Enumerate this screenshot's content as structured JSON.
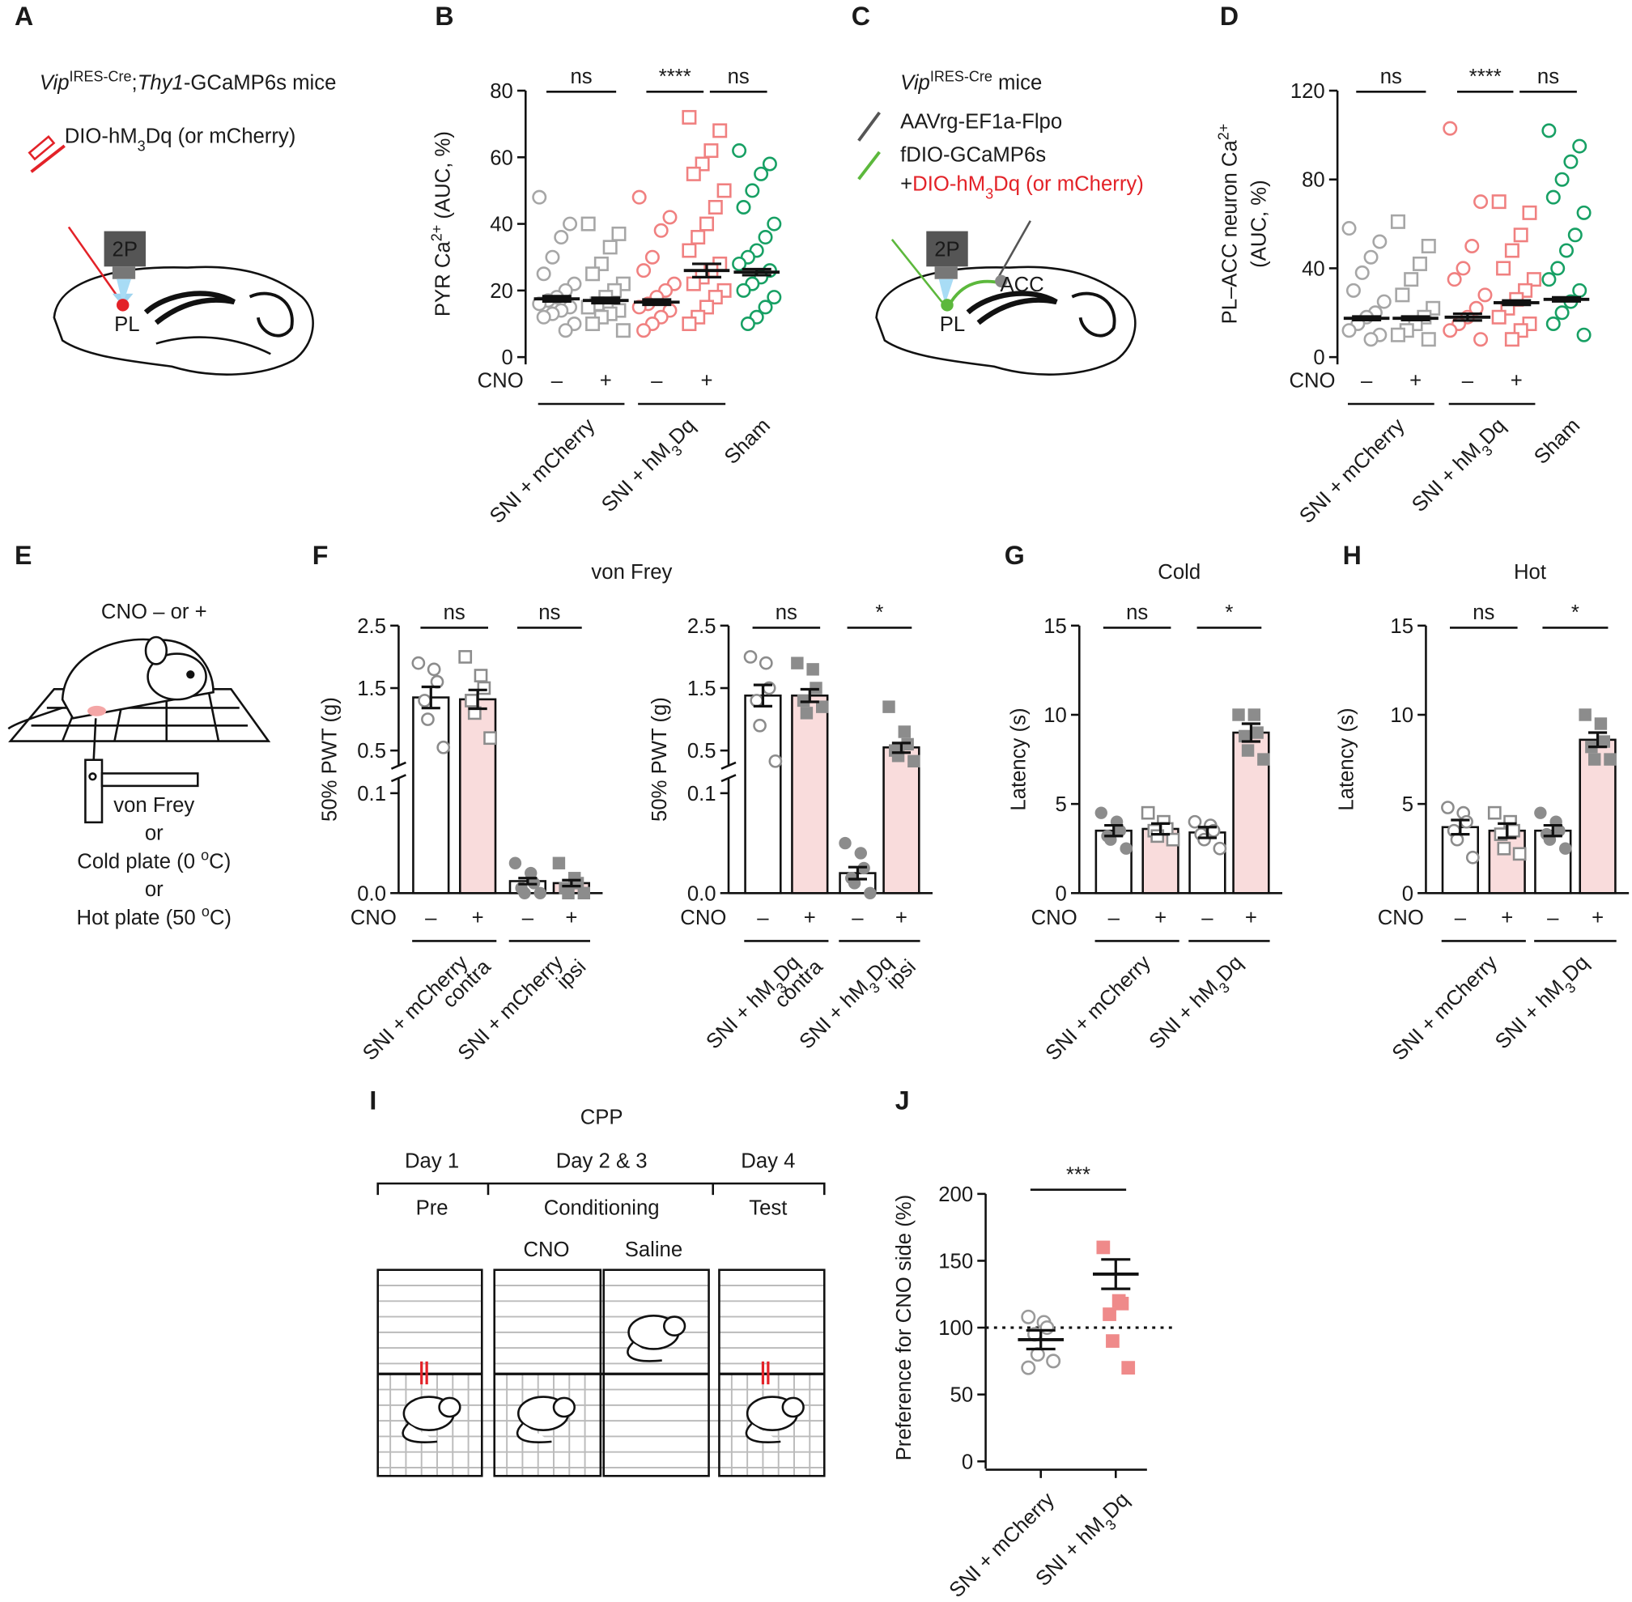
{
  "diagrams": {
    "A": {
      "letter": "A",
      "genotype": [
        {
          "text": "Vip",
          "italic": true
        },
        {
          "text": "IRES-Cre",
          "sup": true
        },
        {
          "text": ";"
        },
        {
          "text": "Thy1",
          "italic": true
        },
        {
          "text": "-GCaMP6s mice"
        }
      ],
      "virus": [
        {
          "text": "DIO-hM"
        },
        {
          "text": "3",
          "sub": true
        },
        {
          "text": "Dq (or mCherry)"
        }
      ],
      "objective": "2P",
      "region": "PL"
    },
    "B": {
      "letter": "B"
    },
    "C": {
      "letter": "C",
      "genotype": [
        {
          "text": "Vip",
          "italic": true
        },
        {
          "text": "IRES-Cre",
          "sup": true
        },
        {
          "text": " mice"
        }
      ],
      "virus1": "AAVrg-EF1a-Flpo",
      "virus2": "fDIO-GCaMP6s",
      "virus3": [
        {
          "text": "+"
        },
        {
          "text": "DIO-hM",
          "color": "#e32228"
        },
        {
          "text": "3",
          "sub": true,
          "color": "#e32228"
        },
        {
          "text": "Dq (or mCherry)",
          "color": "#e32228"
        }
      ],
      "objective": "2P",
      "target": "ACC",
      "region": "PL"
    },
    "D": {
      "letter": "D"
    },
    "E": {
      "letter": "E",
      "treatment": "CNO – or +",
      "tests": [
        [
          {
            "text": "von Frey"
          }
        ],
        [
          {
            "text": "or"
          }
        ],
        [
          {
            "text": "Cold plate (0 "
          },
          {
            "text": "o",
            "sup": true
          },
          {
            "text": "C)"
          }
        ],
        [
          {
            "text": "or"
          }
        ],
        [
          {
            "text": "Hot plate (50 "
          },
          {
            "text": "o",
            "sup": true
          },
          {
            "text": "C)"
          }
        ]
      ]
    },
    "F": {
      "letter": "F",
      "title": "von Frey"
    },
    "G": {
      "letter": "G",
      "title": "Cold"
    },
    "H": {
      "letter": "H",
      "title": "Hot"
    },
    "I": {
      "letter": "I",
      "title": "CPP",
      "days": [
        "Day 1",
        "Day 2 & 3",
        "Day 4"
      ],
      "phases": [
        "Pre",
        "Conditioning",
        "Test"
      ],
      "pairings": [
        "CNO",
        "Saline"
      ]
    },
    "J": {
      "letter": "J"
    }
  },
  "chart_data": [
    {
      "type": "strip",
      "y_label": [
        [
          {
            "text": "PYR Ca"
          },
          {
            "text": "2+",
            "sup": true
          },
          {
            "text": " (AUC, %)"
          }
        ]
      ],
      "ylim": [
        0,
        80
      ],
      "yticks": [
        0,
        20,
        40,
        60,
        80
      ],
      "values": [
        17.5,
        17,
        16.5,
        26,
        25.5
      ],
      "errors": [
        0.8,
        0.8,
        0.8,
        2,
        0.9
      ],
      "points": [
        [
          48,
          40,
          36,
          30,
          25,
          22,
          20,
          18,
          17,
          16,
          15,
          14,
          13,
          12,
          10,
          8
        ],
        [
          40,
          37,
          33,
          28,
          25,
          22,
          20,
          18,
          16,
          15,
          14,
          13,
          12,
          10,
          8
        ],
        [
          48,
          42,
          38,
          30,
          26,
          22,
          20,
          18,
          16,
          15,
          14,
          12,
          10,
          8
        ],
        [
          72,
          68,
          62,
          58,
          55,
          50,
          45,
          40,
          36,
          32,
          28,
          26,
          24,
          22,
          20,
          18,
          15,
          12,
          10
        ],
        [
          62,
          58,
          55,
          50,
          45,
          40,
          36,
          32,
          30,
          28,
          26,
          24,
          22,
          20,
          18,
          15,
          12,
          10
        ]
      ],
      "colors": [
        "#a6a6a6",
        "#a6a6a6",
        "#f08080",
        "#f08080",
        "#17a064"
      ],
      "markers": [
        "circle-open",
        "square-open",
        "circle-open",
        "square-open",
        "circle-open"
      ],
      "cno_label": "CNO",
      "cno_signs": [
        "–",
        "+",
        "–",
        "+",
        null
      ],
      "groups": [
        {
          "span": [
            0,
            1
          ],
          "lines": [
            [
              {
                "text": "SNI + mCherry"
              }
            ]
          ]
        },
        {
          "span": [
            2,
            3
          ],
          "lines": [
            [
              {
                "text": "SNI + hM"
              },
              {
                "text": "3",
                "sub": true
              },
              {
                "text": "Dq"
              }
            ]
          ]
        },
        {
          "span": [
            4,
            4
          ],
          "lines": [
            [
              {
                "text": "Sham"
              }
            ]
          ]
        }
      ],
      "significance": [
        {
          "label": "ns",
          "from": 0,
          "to": 1
        },
        {
          "label": "****",
          "from": 2,
          "to": 3
        },
        {
          "label": "ns",
          "from": 3,
          "to": 4
        }
      ]
    },
    {
      "type": "strip",
      "y_label": [
        [
          {
            "text": "PL–ACC neuron Ca"
          },
          {
            "text": "2+",
            "sup": true
          }
        ],
        [
          {
            "text": "(AUC, %)"
          }
        ]
      ],
      "ylim": [
        0,
        120
      ],
      "yticks": [
        0,
        40,
        80,
        120
      ],
      "values": [
        17.5,
        17.5,
        18,
        24.5,
        26
      ],
      "errors": [
        0.8,
        0.8,
        1.5,
        1,
        0.9
      ],
      "points": [
        [
          58,
          52,
          45,
          38,
          30,
          25,
          20,
          18,
          15,
          12,
          10,
          8
        ],
        [
          61,
          50,
          42,
          35,
          28,
          22,
          18,
          15,
          12,
          10,
          8
        ],
        [
          103,
          70,
          50,
          40,
          35,
          28,
          22,
          18,
          15,
          12,
          8
        ],
        [
          70,
          65,
          55,
          48,
          40,
          35,
          30,
          26,
          22,
          18,
          15,
          12,
          8
        ],
        [
          102,
          95,
          88,
          80,
          72,
          65,
          55,
          48,
          40,
          35,
          30,
          25,
          20,
          15,
          10
        ]
      ],
      "colors": [
        "#a6a6a6",
        "#a6a6a6",
        "#f08080",
        "#f08080",
        "#17a064"
      ],
      "markers": [
        "circle-open",
        "square-open",
        "circle-open",
        "square-open",
        "circle-open"
      ],
      "cno_label": "CNO",
      "cno_signs": [
        "–",
        "+",
        "–",
        "+",
        null
      ],
      "groups": [
        {
          "span": [
            0,
            1
          ],
          "lines": [
            [
              {
                "text": "SNI + mCherry"
              }
            ]
          ]
        },
        {
          "span": [
            2,
            3
          ],
          "lines": [
            [
              {
                "text": "SNI + hM"
              },
              {
                "text": "3",
                "sub": true
              },
              {
                "text": "Dq"
              }
            ]
          ]
        },
        {
          "span": [
            4,
            4
          ],
          "lines": [
            [
              {
                "text": "Sham"
              }
            ]
          ]
        }
      ],
      "significance": [
        {
          "label": "ns",
          "from": 0,
          "to": 1
        },
        {
          "label": "****",
          "from": 2,
          "to": 3
        },
        {
          "label": "ns",
          "from": 3,
          "to": 4
        }
      ]
    },
    {
      "type": "bar",
      "y_label": [
        [
          {
            "text": "50% PWT (g)"
          }
        ]
      ],
      "ylim": [
        0,
        2.5
      ],
      "axis_break": [
        0.1,
        0.5
      ],
      "yticks": [
        {
          "value": 0,
          "label": "0.0"
        },
        0.1,
        0.5,
        1.5,
        2.5
      ],
      "values": [
        1.35,
        1.32,
        0.012,
        0.01
      ],
      "errors": [
        0.17,
        0.15,
        0.003,
        0.003
      ],
      "points": [
        [
          1.9,
          1.8,
          1.6,
          1.3,
          1.0,
          0.55
        ],
        [
          2.0,
          1.7,
          1.5,
          1.3,
          1.1,
          0.7
        ],
        [
          0.03,
          0.02,
          0.01,
          0.005,
          0.0,
          0.0
        ],
        [
          0.03,
          0.015,
          0.01,
          0.005,
          0.0,
          0.0
        ]
      ],
      "bar_colors": [
        "#ffffff",
        "#f9dcdc",
        "#ffffff",
        "#f9dcdc"
      ],
      "colors": [
        "#8c8c8c",
        "#8c8c8c",
        "#8c8c8c",
        "#8c8c8c"
      ],
      "markers": [
        "circle-open",
        "square-open",
        "circle-filled",
        "square-filled"
      ],
      "cno_label": "CNO",
      "cno_signs": [
        "–",
        "+",
        "–",
        "+"
      ],
      "groups": [
        {
          "span": [
            0,
            1
          ],
          "lines": [
            [
              {
                "text": "SNI + mCherry"
              }
            ],
            [
              {
                "text": "contra"
              }
            ]
          ]
        },
        {
          "span": [
            2,
            3
          ],
          "lines": [
            [
              {
                "text": "SNI + mCherry"
              }
            ],
            [
              {
                "text": "ipsi"
              }
            ]
          ]
        }
      ],
      "significance": [
        {
          "label": "ns",
          "from": 0,
          "to": 1
        },
        {
          "label": "ns",
          "from": 2,
          "to": 3
        }
      ]
    },
    {
      "type": "bar",
      "y_label": [
        [
          {
            "text": "50% PWT (g)"
          }
        ]
      ],
      "ylim": [
        0,
        2.5
      ],
      "axis_break": [
        0.1,
        0.5
      ],
      "yticks": [
        {
          "value": 0,
          "label": "0.0"
        },
        0.1,
        0.5,
        1.5,
        2.5
      ],
      "values": [
        1.38,
        1.38,
        0.02,
        0.55
      ],
      "errors": [
        0.17,
        0.1,
        0.006,
        0.07
      ],
      "points": [
        [
          2.0,
          1.9,
          1.5,
          1.3,
          0.9,
          0.4
        ],
        [
          1.9,
          1.8,
          1.5,
          1.3,
          1.1,
          1.2
        ],
        [
          0.05,
          0.04,
          0.025,
          0.015,
          0.01,
          0.0
        ],
        [
          1.2,
          0.8,
          0.6,
          0.5,
          0.45,
          0.4
        ]
      ],
      "bar_colors": [
        "#ffffff",
        "#f9dcdc",
        "#ffffff",
        "#f9dcdc"
      ],
      "colors": [
        "#8c8c8c",
        "#8c8c8c",
        "#8c8c8c",
        "#8c8c8c"
      ],
      "markers": [
        "circle-open",
        "square-filled",
        "circle-filled",
        "square-filled"
      ],
      "cno_label": "CNO",
      "cno_signs": [
        "–",
        "+",
        "–",
        "+"
      ],
      "groups": [
        {
          "span": [
            0,
            1
          ],
          "lines": [
            [
              {
                "text": "SNI + hM"
              },
              {
                "text": "3",
                "sub": true
              },
              {
                "text": "Dq"
              }
            ],
            [
              {
                "text": "contra"
              }
            ]
          ]
        },
        {
          "span": [
            2,
            3
          ],
          "lines": [
            [
              {
                "text": "SNI + hM"
              },
              {
                "text": "3",
                "sub": true
              },
              {
                "text": "Dq"
              }
            ],
            [
              {
                "text": "ipsi"
              }
            ]
          ]
        }
      ],
      "significance": [
        {
          "label": "ns",
          "from": 0,
          "to": 1
        },
        {
          "label": "*",
          "from": 2,
          "to": 3
        }
      ]
    },
    {
      "type": "bar",
      "y_label": [
        [
          {
            "text": "Latency (s)"
          }
        ]
      ],
      "ylim": [
        0,
        15
      ],
      "yticks": [
        0,
        5,
        10,
        15
      ],
      "values": [
        3.5,
        3.6,
        3.4,
        9.0
      ],
      "errors": [
        0.3,
        0.3,
        0.3,
        0.5
      ],
      "points": [
        [
          4.5,
          4.0,
          3.5,
          3.2,
          3.0,
          2.5
        ],
        [
          4.5,
          4.0,
          3.6,
          3.5,
          3.2,
          3.0
        ],
        [
          4.0,
          3.8,
          3.5,
          3.3,
          3.0,
          2.5
        ],
        [
          10.0,
          10.0,
          9.0,
          8.8,
          8.0,
          7.5
        ]
      ],
      "bar_colors": [
        "#ffffff",
        "#f9dcdc",
        "#ffffff",
        "#f9dcdc"
      ],
      "colors": [
        "#8c8c8c",
        "#8c8c8c",
        "#8c8c8c",
        "#8c8c8c"
      ],
      "markers": [
        "circle-filled",
        "square-open",
        "circle-open",
        "square-filled"
      ],
      "cno_label": "CNO",
      "cno_signs": [
        "–",
        "+",
        "–",
        "+"
      ],
      "groups": [
        {
          "span": [
            0,
            1
          ],
          "lines": [
            [
              {
                "text": "SNI + mCherry"
              }
            ]
          ]
        },
        {
          "span": [
            2,
            3
          ],
          "lines": [
            [
              {
                "text": "SNI + hM"
              },
              {
                "text": "3",
                "sub": true
              },
              {
                "text": "Dq"
              }
            ]
          ]
        }
      ],
      "significance": [
        {
          "label": "ns",
          "from": 0,
          "to": 1
        },
        {
          "label": "*",
          "from": 2,
          "to": 3
        }
      ]
    },
    {
      "type": "bar",
      "y_label": [
        [
          {
            "text": "Latency (s)"
          }
        ]
      ],
      "ylim": [
        0,
        15
      ],
      "yticks": [
        0,
        5,
        10,
        15
      ],
      "values": [
        3.7,
        3.5,
        3.5,
        8.6
      ],
      "errors": [
        0.4,
        0.4,
        0.3,
        0.4
      ],
      "points": [
        [
          4.8,
          4.5,
          4.0,
          3.5,
          3.0,
          2.0
        ],
        [
          4.5,
          4.0,
          3.5,
          3.3,
          2.5,
          2.2
        ],
        [
          4.5,
          4.0,
          3.5,
          3.3,
          3.0,
          2.5
        ],
        [
          10.0,
          9.5,
          8.5,
          8.2,
          7.5,
          7.5
        ]
      ],
      "bar_colors": [
        "#ffffff",
        "#f9dcdc",
        "#ffffff",
        "#f9dcdc"
      ],
      "colors": [
        "#8c8c8c",
        "#8c8c8c",
        "#8c8c8c",
        "#8c8c8c"
      ],
      "markers": [
        "circle-open",
        "square-open",
        "circle-filled",
        "square-filled"
      ],
      "cno_label": "CNO",
      "cno_signs": [
        "–",
        "+",
        "–",
        "+"
      ],
      "groups": [
        {
          "span": [
            0,
            1
          ],
          "lines": [
            [
              {
                "text": "SNI + mCherry"
              }
            ]
          ]
        },
        {
          "span": [
            2,
            3
          ],
          "lines": [
            [
              {
                "text": "SNI + hM"
              },
              {
                "text": "3",
                "sub": true
              },
              {
                "text": "Dq"
              }
            ]
          ]
        }
      ],
      "significance": [
        {
          "label": "ns",
          "from": 0,
          "to": 1
        },
        {
          "label": "*",
          "from": 2,
          "to": 3
        }
      ]
    },
    {
      "type": "strip",
      "x_axis": true,
      "y_label": [
        [
          {
            "text": "Preference for CNO side (%)"
          }
        ]
      ],
      "ylim": [
        0,
        200
      ],
      "yticks": [
        0,
        50,
        100,
        150,
        200
      ],
      "ref_line": 100,
      "values": [
        91,
        140
      ],
      "errors": [
        7,
        11
      ],
      "points": [
        [
          108,
          104,
          100,
          95,
          80,
          75,
          70
        ],
        [
          160,
          120,
          118,
          110,
          90,
          70
        ]
      ],
      "colors": [
        "#9a9a9a",
        "#ef8a8a"
      ],
      "markers": [
        "circle-open",
        "square-filled"
      ],
      "groups": [
        {
          "span": [
            0,
            0
          ],
          "lines": [
            [
              {
                "text": "SNI + mCherry"
              }
            ]
          ]
        },
        {
          "span": [
            1,
            1
          ],
          "lines": [
            [
              {
                "text": "SNI + hM"
              },
              {
                "text": "3",
                "sub": true
              },
              {
                "text": "Dq"
              }
            ]
          ]
        }
      ],
      "significance": [
        {
          "label": "***",
          "from": 0,
          "to": 1
        }
      ]
    }
  ]
}
